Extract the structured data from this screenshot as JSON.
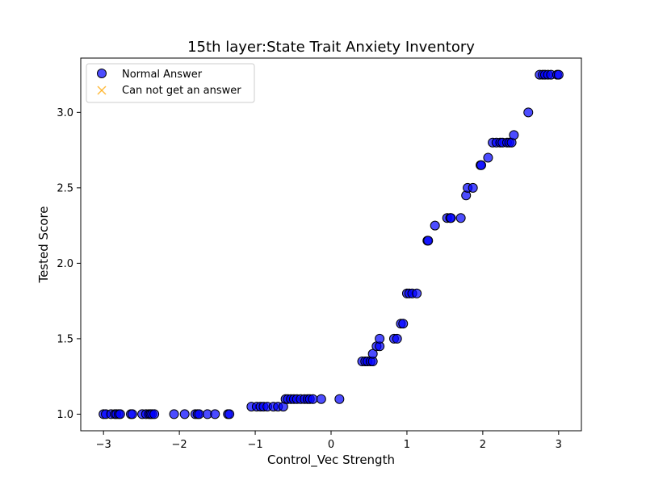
{
  "chart_data": {
    "type": "scatter",
    "title": "15th layer:State Trait Anxiety Inventory",
    "xlabel": "Control_Vec Strength",
    "ylabel": "Tested Score",
    "xlim": [
      -3.3,
      3.3
    ],
    "ylim": [
      0.89,
      3.36
    ],
    "x_ticks": [
      -3,
      -2,
      -1,
      0,
      1,
      2,
      3
    ],
    "x_tick_labels": [
      "−3",
      "−2",
      "−1",
      "0",
      "1",
      "2",
      "3"
    ],
    "y_ticks": [
      1.0,
      1.5,
      2.0,
      2.5,
      3.0
    ],
    "y_tick_labels": [
      "1.0",
      "1.5",
      "2.0",
      "2.5",
      "3.0"
    ],
    "grid": false,
    "legend_position": "top-left",
    "series": [
      {
        "name": "Normal Answer",
        "marker": "circle",
        "color": "#0000ff",
        "edge_color": "#000000",
        "points": [
          [
            -3.0,
            1.0
          ],
          [
            -2.97,
            1.0
          ],
          [
            -2.9,
            1.0
          ],
          [
            -2.85,
            1.0
          ],
          [
            -2.83,
            1.0
          ],
          [
            -2.8,
            1.0
          ],
          [
            -2.78,
            1.0
          ],
          [
            -2.64,
            1.0
          ],
          [
            -2.62,
            1.0
          ],
          [
            -2.49,
            1.0
          ],
          [
            -2.44,
            1.0
          ],
          [
            -2.4,
            1.0
          ],
          [
            -2.38,
            1.0
          ],
          [
            -2.36,
            1.0
          ],
          [
            -2.33,
            1.0
          ],
          [
            -2.07,
            1.0
          ],
          [
            -1.93,
            1.0
          ],
          [
            -1.79,
            1.0
          ],
          [
            -1.76,
            1.0
          ],
          [
            -1.74,
            1.0
          ],
          [
            -1.63,
            1.0
          ],
          [
            -1.53,
            1.0
          ],
          [
            -1.36,
            1.0
          ],
          [
            -1.34,
            1.0
          ],
          [
            -1.05,
            1.05
          ],
          [
            -0.98,
            1.05
          ],
          [
            -0.93,
            1.05
          ],
          [
            -0.89,
            1.05
          ],
          [
            -0.84,
            1.05
          ],
          [
            -0.76,
            1.05
          ],
          [
            -0.7,
            1.05
          ],
          [
            -0.63,
            1.05
          ],
          [
            -0.6,
            1.1
          ],
          [
            -0.57,
            1.1
          ],
          [
            -0.53,
            1.1
          ],
          [
            -0.49,
            1.1
          ],
          [
            -0.45,
            1.1
          ],
          [
            -0.4,
            1.1
          ],
          [
            -0.35,
            1.1
          ],
          [
            -0.31,
            1.1
          ],
          [
            -0.28,
            1.1
          ],
          [
            -0.24,
            1.1
          ],
          [
            -0.13,
            1.1
          ],
          [
            0.11,
            1.1
          ],
          [
            0.41,
            1.35
          ],
          [
            0.45,
            1.35
          ],
          [
            0.48,
            1.35
          ],
          [
            0.52,
            1.35
          ],
          [
            0.55,
            1.35
          ],
          [
            0.55,
            1.4
          ],
          [
            0.6,
            1.45
          ],
          [
            0.64,
            1.45
          ],
          [
            0.64,
            1.5
          ],
          [
            0.83,
            1.5
          ],
          [
            0.87,
            1.5
          ],
          [
            0.92,
            1.6
          ],
          [
            0.95,
            1.6
          ],
          [
            1.0,
            1.8
          ],
          [
            1.03,
            1.8
          ],
          [
            1.07,
            1.8
          ],
          [
            1.13,
            1.8
          ],
          [
            1.27,
            2.15
          ],
          [
            1.28,
            2.15
          ],
          [
            1.37,
            2.25
          ],
          [
            1.53,
            2.3
          ],
          [
            1.57,
            2.3
          ],
          [
            1.58,
            2.3
          ],
          [
            1.71,
            2.3
          ],
          [
            1.78,
            2.45
          ],
          [
            1.8,
            2.5
          ],
          [
            1.87,
            2.5
          ],
          [
            1.97,
            2.65
          ],
          [
            1.98,
            2.65
          ],
          [
            2.07,
            2.7
          ],
          [
            2.13,
            2.8
          ],
          [
            2.18,
            2.8
          ],
          [
            2.23,
            2.8
          ],
          [
            2.26,
            2.8
          ],
          [
            2.32,
            2.8
          ],
          [
            2.35,
            2.8
          ],
          [
            2.38,
            2.8
          ],
          [
            2.41,
            2.85
          ],
          [
            2.6,
            3.0
          ],
          [
            2.75,
            3.25
          ],
          [
            2.79,
            3.25
          ],
          [
            2.82,
            3.25
          ],
          [
            2.86,
            3.25
          ],
          [
            2.9,
            3.25
          ],
          [
            2.98,
            3.25
          ],
          [
            3.0,
            3.25
          ]
        ]
      },
      {
        "name": "Can not get an answer",
        "marker": "x",
        "color": "#ffa500",
        "points": []
      }
    ]
  }
}
